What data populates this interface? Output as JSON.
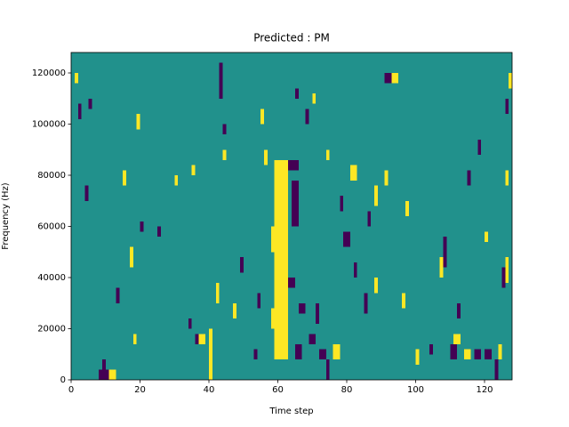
{
  "chart_data": {
    "type": "heatmap",
    "title": "Predicted : PM",
    "x_label": "Time step",
    "y_label": "Frequency (Hz)",
    "xlim": [
      0,
      128
    ],
    "ylim": [
      0,
      128000
    ],
    "xticks": [
      0,
      20,
      40,
      60,
      80,
      100,
      120
    ],
    "yticks": [
      0,
      20000,
      40000,
      60000,
      80000,
      100000,
      120000
    ],
    "levels": [
      -1,
      0,
      1
    ],
    "level_colors": [
      "#440154",
      "#21918c",
      "#fde725"
    ],
    "background_value": 0,
    "cells": [
      [
        59,
        63,
        8000,
        86000,
        1
      ],
      [
        58,
        59,
        20000,
        28000,
        1
      ],
      [
        58,
        59,
        50000,
        60000,
        1
      ],
      [
        63,
        66,
        82000,
        86000,
        -1
      ],
      [
        64,
        66,
        60000,
        78000,
        -1
      ],
      [
        65,
        67,
        8000,
        14000,
        -1
      ],
      [
        63,
        65,
        36000,
        40000,
        -1
      ],
      [
        66,
        68,
        26000,
        30000,
        -1
      ],
      [
        8,
        11,
        0,
        4000,
        -1
      ],
      [
        11,
        13,
        0,
        4000,
        1
      ],
      [
        9,
        10,
        4000,
        8000,
        -1
      ],
      [
        40,
        41,
        0,
        20000,
        1
      ],
      [
        37,
        39,
        14000,
        18000,
        1
      ],
      [
        36,
        37,
        14000,
        18000,
        -1
      ],
      [
        42,
        43,
        30000,
        38000,
        1
      ],
      [
        72,
        74,
        8000,
        12000,
        -1
      ],
      [
        71,
        72,
        22000,
        30000,
        -1
      ],
      [
        69,
        71,
        14000,
        18000,
        -1
      ],
      [
        76,
        78,
        8000,
        14000,
        1
      ],
      [
        74,
        75,
        0,
        8000,
        -1
      ],
      [
        91,
        93,
        116000,
        120000,
        -1
      ],
      [
        93,
        95,
        116000,
        120000,
        1
      ],
      [
        81,
        83,
        78000,
        84000,
        1
      ],
      [
        79,
        81,
        52000,
        58000,
        -1
      ],
      [
        82,
        83,
        40000,
        46000,
        -1
      ],
      [
        85,
        86,
        26000,
        34000,
        -1
      ],
      [
        78,
        79,
        66000,
        72000,
        -1
      ],
      [
        88,
        89,
        68000,
        76000,
        1
      ],
      [
        74,
        75,
        86000,
        90000,
        1
      ],
      [
        70,
        71,
        108000,
        112000,
        1
      ],
      [
        68,
        69,
        100000,
        106000,
        -1
      ],
      [
        65,
        66,
        110000,
        114000,
        -1
      ],
      [
        43,
        44,
        110000,
        124000,
        -1
      ],
      [
        44,
        45,
        96000,
        100000,
        -1
      ],
      [
        44,
        45,
        86000,
        90000,
        1
      ],
      [
        35,
        36,
        80000,
        84000,
        1
      ],
      [
        30,
        31,
        76000,
        80000,
        1
      ],
      [
        25,
        26,
        56000,
        60000,
        -1
      ],
      [
        19,
        20,
        98000,
        104000,
        1
      ],
      [
        20,
        21,
        58000,
        62000,
        -1
      ],
      [
        17,
        18,
        44000,
        52000,
        1
      ],
      [
        18,
        19,
        14000,
        18000,
        1
      ],
      [
        15,
        16,
        76000,
        82000,
        1
      ],
      [
        13,
        14,
        30000,
        36000,
        -1
      ],
      [
        4,
        5,
        70000,
        76000,
        -1
      ],
      [
        2,
        3,
        102000,
        108000,
        -1
      ],
      [
        1,
        2,
        116000,
        120000,
        1
      ],
      [
        5,
        6,
        106000,
        110000,
        -1
      ],
      [
        107,
        108,
        40000,
        48000,
        1
      ],
      [
        108,
        109,
        44000,
        56000,
        -1
      ],
      [
        110,
        112,
        8000,
        14000,
        -1
      ],
      [
        111,
        113,
        14000,
        18000,
        1
      ],
      [
        114,
        116,
        8000,
        12000,
        1
      ],
      [
        115,
        116,
        76000,
        82000,
        -1
      ],
      [
        117,
        119,
        8000,
        12000,
        -1
      ],
      [
        120,
        122,
        8000,
        12000,
        -1
      ],
      [
        123,
        124,
        0,
        8000,
        -1
      ],
      [
        124,
        125,
        8000,
        14000,
        1
      ],
      [
        125,
        126,
        36000,
        44000,
        -1
      ],
      [
        126,
        127,
        38000,
        48000,
        1
      ],
      [
        126,
        127,
        76000,
        82000,
        1
      ],
      [
        126,
        127,
        104000,
        110000,
        -1
      ],
      [
        127,
        128,
        114000,
        120000,
        1
      ],
      [
        120,
        121,
        54000,
        58000,
        1
      ],
      [
        118,
        119,
        88000,
        94000,
        -1
      ],
      [
        112,
        113,
        24000,
        30000,
        -1
      ],
      [
        100,
        101,
        6000,
        12000,
        1
      ],
      [
        104,
        105,
        10000,
        14000,
        -1
      ],
      [
        97,
        98,
        64000,
        70000,
        1
      ],
      [
        96,
        97,
        28000,
        34000,
        1
      ],
      [
        91,
        92,
        76000,
        82000,
        1
      ],
      [
        88,
        89,
        34000,
        40000,
        1
      ],
      [
        86,
        87,
        60000,
        66000,
        -1
      ],
      [
        53,
        54,
        8000,
        12000,
        -1
      ],
      [
        55,
        56,
        100000,
        106000,
        1
      ],
      [
        56,
        57,
        84000,
        90000,
        1
      ],
      [
        47,
        48,
        24000,
        30000,
        1
      ],
      [
        49,
        50,
        42000,
        48000,
        -1
      ],
      [
        54,
        55,
        28000,
        34000,
        -1
      ],
      [
        34,
        35,
        20000,
        24000,
        -1
      ]
    ]
  }
}
